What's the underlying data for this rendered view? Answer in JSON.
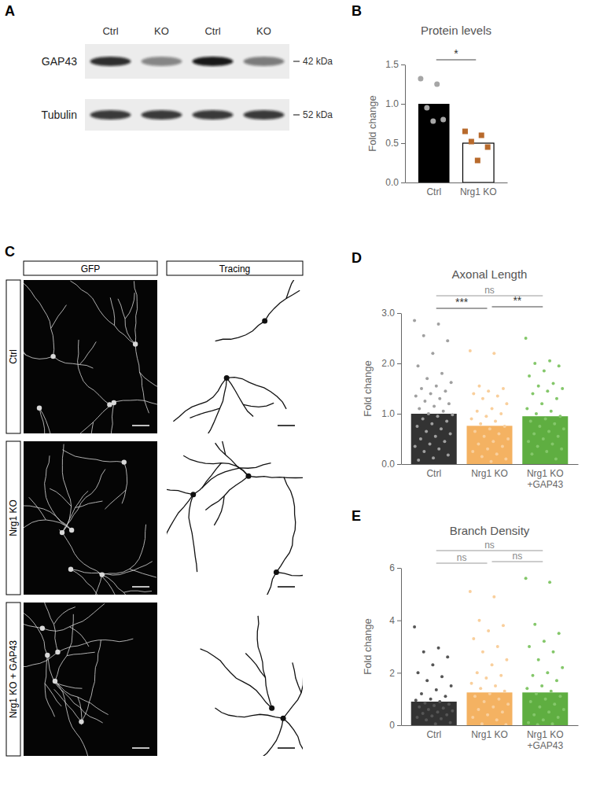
{
  "panel_a": {
    "panel_label": "A",
    "lanes": [
      "Ctrl",
      "KO",
      "Ctrl",
      "KO"
    ],
    "rows": [
      {
        "name": "GAP43",
        "size": "42 kDa"
      },
      {
        "name": "Tubulin",
        "size": "52 kDa"
      }
    ]
  },
  "chart_data": [
    {
      "panel_label": "B",
      "type": "bar",
      "title": "Protein levels",
      "y_label": "Fold change",
      "categories": [
        "Ctrl",
        "Nrg1 KO"
      ],
      "values": [
        1.0,
        0.5
      ],
      "colors": [
        "#000000",
        "#ffffff"
      ],
      "points": [
        [
          1.32,
          1.25,
          0.95,
          0.8,
          0.78
        ],
        [
          0.65,
          0.6,
          0.52,
          0.45,
          0.28
        ]
      ],
      "point_colors": [
        "#a6a6a6",
        "#b86a2c"
      ],
      "point_markers": [
        "circle",
        "square"
      ],
      "ylim": [
        0,
        1.5
      ],
      "yticks": [
        {
          "value": 0,
          "label": "0.0"
        },
        {
          "value": 0.5,
          "label": "0.5"
        },
        {
          "value": 1,
          "label": "1.0"
        },
        {
          "value": 1.5,
          "label": "1.5"
        }
      ],
      "significance": [
        {
          "groups": [
            "Ctrl",
            "Nrg1 KO"
          ],
          "label": "*"
        }
      ]
    },
    {
      "panel_label": "D",
      "type": "bar",
      "title": "Axonal Length",
      "y_label": "Fold change",
      "categories": [
        "Ctrl",
        "Nrg1 KO",
        "Nrg1 KO +GAP43"
      ],
      "values": [
        1.0,
        0.76,
        0.95
      ],
      "colors": [
        "#333333",
        "#f4b262",
        "#5fae41"
      ],
      "points": [
        [
          2.85,
          2.78,
          2.55,
          2.45,
          2.2,
          1.95,
          1.8,
          1.7,
          1.62,
          1.55,
          1.5,
          1.45,
          1.4,
          1.35,
          1.3,
          1.25,
          1.2,
          1.15,
          1.1,
          1.05,
          1.0,
          0.98,
          0.95,
          0.9,
          0.85,
          0.8,
          0.75,
          0.7,
          0.65,
          0.6,
          0.55,
          0.5,
          0.45,
          0.4,
          0.35,
          0.3,
          0.25,
          0.18,
          0.12,
          0.08
        ],
        [
          2.25,
          2.2,
          1.55,
          1.5,
          1.45,
          1.4,
          1.35,
          1.3,
          1.2,
          1.1,
          1.05,
          1.0,
          0.95,
          0.9,
          0.85,
          0.8,
          0.75,
          0.7,
          0.65,
          0.6,
          0.55,
          0.5,
          0.45,
          0.4,
          0.35,
          0.3,
          0.25,
          0.2,
          0.15,
          0.1,
          0.05
        ],
        [
          2.5,
          2.05,
          2.0,
          1.95,
          1.85,
          1.75,
          1.6,
          1.55,
          1.5,
          1.45,
          1.4,
          1.3,
          1.2,
          1.1,
          1.05,
          1.0,
          0.95,
          0.9,
          0.85,
          0.8,
          0.75,
          0.7,
          0.65,
          0.6,
          0.55,
          0.5,
          0.45,
          0.4,
          0.35,
          0.3,
          0.25,
          0.2,
          0.1
        ]
      ],
      "point_colors": [
        "#a0a0a0",
        "#f9cf9c",
        "#84c76a"
      ],
      "point_markers": [
        "circle",
        "circle",
        "circle"
      ],
      "ylim": [
        0,
        3
      ],
      "yticks": [
        {
          "value": 0,
          "label": "0.0"
        },
        {
          "value": 1,
          "label": "1.0"
        },
        {
          "value": 2,
          "label": "2.0"
        },
        {
          "value": 3,
          "label": "3.0"
        }
      ],
      "significance": [
        {
          "groups": [
            "Ctrl",
            "Nrg1 KO +GAP43"
          ],
          "label": "ns"
        },
        {
          "groups": [
            "Ctrl",
            "Nrg1 KO"
          ],
          "label": "***"
        },
        {
          "groups": [
            "Nrg1 KO",
            "Nrg1 KO +GAP43"
          ],
          "label": "**"
        }
      ]
    },
    {
      "panel_label": "E",
      "type": "bar",
      "title": "Branch Density",
      "y_label": "Fold change",
      "categories": [
        "Ctrl",
        "Nrg1 KO",
        "Nrg1 KO +GAP43"
      ],
      "values": [
        0.9,
        1.25,
        1.25
      ],
      "colors": [
        "#333333",
        "#f4b262",
        "#5fae41"
      ],
      "points": [
        [
          3.75,
          2.95,
          2.8,
          2.6,
          2.3,
          2.0,
          1.85,
          1.7,
          1.5,
          1.35,
          1.2,
          1.1,
          1.0,
          0.95,
          0.9,
          0.85,
          0.8,
          0.75,
          0.7,
          0.65,
          0.6,
          0.55,
          0.5,
          0.45,
          0.4,
          0.35,
          0.3,
          0.25,
          0.2,
          0.1,
          0.05
        ],
        [
          5.1,
          4.9,
          4.0,
          3.8,
          3.6,
          3.3,
          3.0,
          2.8,
          2.5,
          2.3,
          2.0,
          1.9,
          1.8,
          1.6,
          1.5,
          1.4,
          1.3,
          1.2,
          1.1,
          1.0,
          0.9,
          0.8,
          0.7,
          0.6,
          0.5,
          0.4,
          0.3,
          0.2,
          0.05,
          0.02
        ],
        [
          5.6,
          5.45,
          3.85,
          3.5,
          3.2,
          3.0,
          2.8,
          2.5,
          2.2,
          2.0,
          1.9,
          1.7,
          1.5,
          1.4,
          1.3,
          1.2,
          1.1,
          1.0,
          0.9,
          0.8,
          0.7,
          0.6,
          0.5,
          0.4,
          0.3,
          0.2,
          0.1,
          0.05,
          0.02
        ]
      ],
      "point_colors": [
        "#555555",
        "#f9cf9c",
        "#84c76a"
      ],
      "point_markers": [
        "circle",
        "circle",
        "circle"
      ],
      "ylim": [
        0,
        6
      ],
      "yticks": [
        0,
        2,
        4,
        6
      ],
      "significance": [
        {
          "groups": [
            "Ctrl",
            "Nrg1 KO +GAP43"
          ],
          "label": "ns"
        },
        {
          "groups": [
            "Ctrl",
            "Nrg1 KO"
          ],
          "label": "ns"
        },
        {
          "groups": [
            "Nrg1 KO",
            "Nrg1 KO +GAP43"
          ],
          "label": "ns"
        }
      ]
    }
  ],
  "panel_c": {
    "panel_label": "C",
    "columns": [
      "GFP",
      "Tracing"
    ],
    "rows": [
      "Ctrl",
      "Nrg1 KO",
      "Nrg1 KO + GAP43"
    ]
  }
}
